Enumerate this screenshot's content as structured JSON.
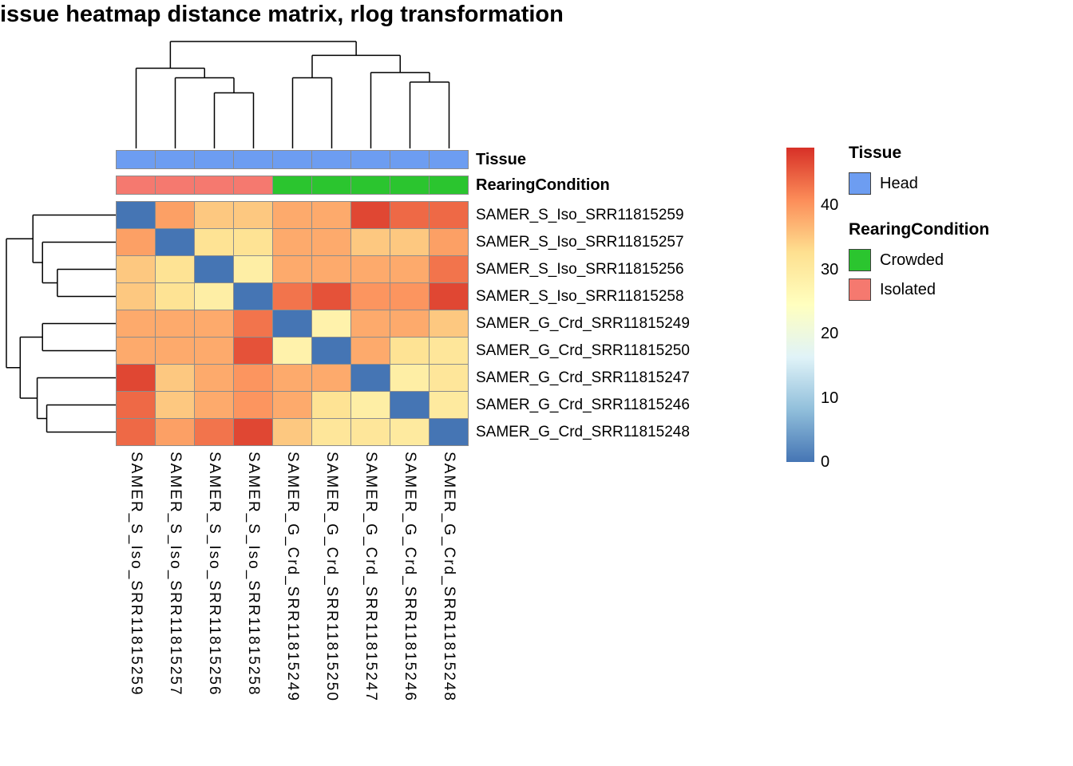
{
  "title": "issue heatmap distance matrix, rlog transformation",
  "annotations": {
    "tissue": {
      "label": "Tissue",
      "values": [
        "Head",
        "Head",
        "Head",
        "Head",
        "Head",
        "Head",
        "Head",
        "Head",
        "Head"
      ],
      "colors": {
        "Head": "#6D9DF1"
      }
    },
    "rearing": {
      "label": "RearingCondition",
      "values": [
        "Isolated",
        "Isolated",
        "Isolated",
        "Isolated",
        "Crowded",
        "Crowded",
        "Crowded",
        "Crowded",
        "Crowded"
      ],
      "colors": {
        "Crowded": "#2BC52F",
        "Isolated": "#F5796F"
      }
    }
  },
  "legend": {
    "tissue_title": "Tissue",
    "tissue_items": [
      {
        "label": "Head",
        "color": "#6D9DF1"
      }
    ],
    "rearing_title": "RearingCondition",
    "rearing_items": [
      {
        "label": "Crowded",
        "color": "#2BC52F"
      },
      {
        "label": "Isolated",
        "color": "#F5796F"
      }
    ],
    "colorbar_ticks": [
      40,
      30,
      20,
      10,
      0
    ],
    "colorbar_stops": [
      "#4575B4",
      "#91BFDB",
      "#E0F3F8",
      "#FFFFBF",
      "#FEE090",
      "#FC8D59",
      "#D73027"
    ]
  },
  "chart_data": {
    "type": "heatmap",
    "title": "issue heatmap distance matrix, rlog transformation",
    "rows": [
      "SAMER_S_Iso_SRR11815259",
      "SAMER_S_Iso_SRR11815257",
      "SAMER_S_Iso_SRR11815256",
      "SAMER_S_Iso_SRR11815258",
      "SAMER_G_Crd_SRR11815249",
      "SAMER_G_Crd_SRR11815250",
      "SAMER_G_Crd_SRR11815247",
      "SAMER_G_Crd_SRR11815246",
      "SAMER_G_Crd_SRR11815248"
    ],
    "columns": [
      "SAMER_S_Iso_SRR11815259",
      "SAMER_S_Iso_SRR11815257",
      "SAMER_S_Iso_SRR11815256",
      "SAMER_S_Iso_SRR11815258",
      "SAMER_G_Crd_SRR11815249",
      "SAMER_G_Crd_SRR11815250",
      "SAMER_G_Crd_SRR11815247",
      "SAMER_G_Crd_SRR11815246",
      "SAMER_G_Crd_SRR11815248"
    ],
    "values": [
      [
        0,
        39,
        35,
        35,
        38,
        38,
        47,
        44,
        44
      ],
      [
        39,
        0,
        32,
        32,
        38,
        38,
        35,
        35,
        39
      ],
      [
        35,
        32,
        0,
        29,
        38,
        38,
        38,
        38,
        43
      ],
      [
        35,
        32,
        29,
        0,
        43,
        46,
        40,
        40,
        47
      ],
      [
        38,
        38,
        38,
        43,
        0,
        28,
        38,
        38,
        35
      ],
      [
        38,
        38,
        38,
        46,
        28,
        0,
        38,
        32,
        31
      ],
      [
        47,
        35,
        38,
        40,
        38,
        38,
        0,
        29,
        31
      ],
      [
        44,
        35,
        38,
        40,
        38,
        32,
        29,
        0,
        30
      ],
      [
        44,
        39,
        43,
        47,
        35,
        31,
        31,
        30,
        0
      ]
    ],
    "value_domain": [
      0,
      49
    ],
    "col_dendrogram": {
      "h": 1.0,
      "children": [
        {
          "h": 0.75,
          "children": [
            {
              "leaf": 0
            },
            {
              "h": 0.66,
              "children": [
                {
                  "leaf": 1
                },
                {
                  "h": 0.52,
                  "children": [
                    {
                      "leaf": 2
                    },
                    {
                      "leaf": 3
                    }
                  ]
                }
              ]
            }
          ]
        },
        {
          "h": 0.87,
          "children": [
            {
              "h": 0.66,
              "children": [
                {
                  "leaf": 4
                },
                {
                  "leaf": 5
                }
              ]
            },
            {
              "h": 0.71,
              "children": [
                {
                  "leaf": 6
                },
                {
                  "h": 0.62,
                  "children": [
                    {
                      "leaf": 7
                    },
                    {
                      "leaf": 8
                    }
                  ]
                }
              ]
            }
          ]
        }
      ]
    },
    "row_dendrogram": {
      "h": 1.0,
      "children": [
        {
          "h": 0.75,
          "children": [
            {
              "leaf": 0
            },
            {
              "h": 0.66,
              "children": [
                {
                  "leaf": 1
                },
                {
                  "h": 0.52,
                  "children": [
                    {
                      "leaf": 2
                    },
                    {
                      "leaf": 3
                    }
                  ]
                }
              ]
            }
          ]
        },
        {
          "h": 0.87,
          "children": [
            {
              "h": 0.66,
              "children": [
                {
                  "leaf": 4
                },
                {
                  "leaf": 5
                }
              ]
            },
            {
              "h": 0.71,
              "children": [
                {
                  "leaf": 6
                },
                {
                  "h": 0.62,
                  "children": [
                    {
                      "leaf": 7
                    },
                    {
                      "leaf": 8
                    }
                  ]
                }
              ]
            }
          ]
        }
      ]
    }
  }
}
